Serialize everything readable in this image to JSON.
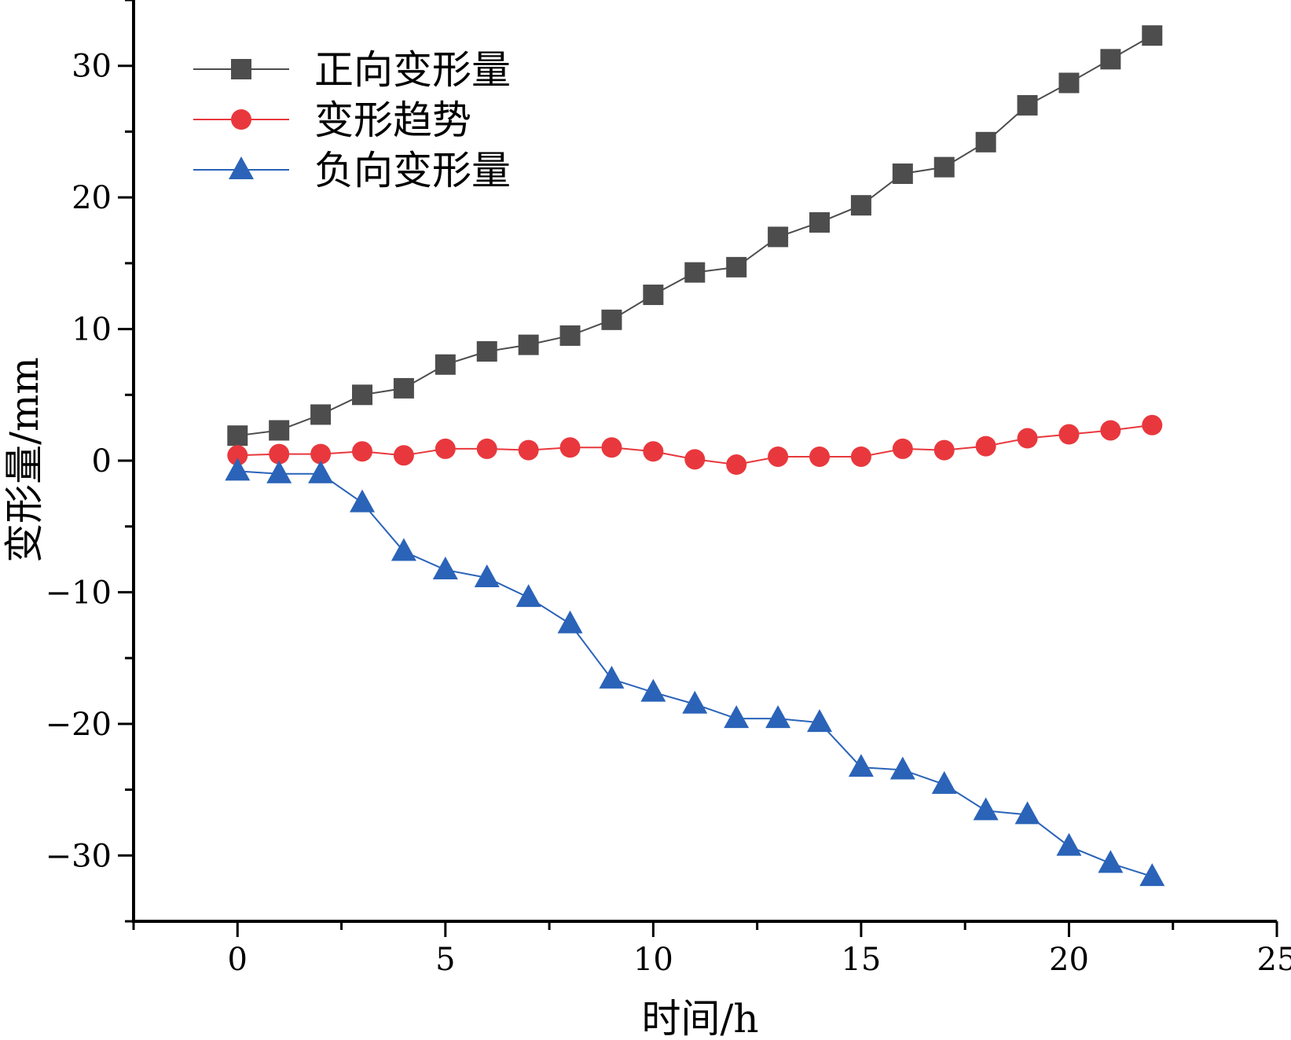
{
  "chart_data": {
    "type": "line",
    "xlabel": "时间/h",
    "ylabel": "变形量/mm",
    "xlim": [
      -2.5,
      25
    ],
    "ylim": [
      -35,
      35
    ],
    "x_ticks": [
      0,
      5,
      10,
      15,
      20,
      25
    ],
    "x_tick_labels": [
      "0",
      "5",
      "10",
      "15",
      "20",
      "25"
    ],
    "y_ticks": [
      -30,
      -20,
      -10,
      0,
      10,
      20,
      30
    ],
    "y_tick_labels": [
      "−30",
      "−20",
      "−10",
      "0",
      "10",
      "20",
      "30"
    ],
    "grid": false,
    "legend_position": "top-left",
    "x": [
      0,
      1,
      2,
      3,
      4,
      5,
      6,
      7,
      8,
      9,
      10,
      11,
      12,
      13,
      14,
      15,
      16,
      17,
      18,
      19,
      20,
      21,
      22
    ],
    "series": [
      {
        "name": "正向变形量",
        "color": "#4d4d4d",
        "marker": "square",
        "values": [
          1.9,
          2.3,
          3.5,
          5.0,
          5.5,
          7.3,
          8.3,
          8.8,
          9.5,
          10.7,
          12.6,
          14.3,
          14.7,
          17.0,
          18.1,
          19.4,
          21.8,
          22.3,
          24.2,
          27.0,
          28.7,
          30.5,
          32.3
        ]
      },
      {
        "name": "变形趋势",
        "color": "#e8383d",
        "marker": "circle",
        "values": [
          0.4,
          0.5,
          0.5,
          0.7,
          0.4,
          0.9,
          0.9,
          0.8,
          1.0,
          1.0,
          0.7,
          0.1,
          -0.3,
          0.3,
          0.3,
          0.3,
          0.9,
          0.8,
          1.1,
          1.7,
          2.0,
          2.3,
          2.7
        ]
      },
      {
        "name": "负向变形量",
        "color": "#2a63b8",
        "marker": "triangle",
        "values": [
          -0.8,
          -1.0,
          -1.0,
          -3.2,
          -6.9,
          -8.3,
          -8.9,
          -10.4,
          -12.4,
          -16.6,
          -17.6,
          -18.5,
          -19.6,
          -19.6,
          -19.9,
          -23.3,
          -23.5,
          -24.6,
          -26.6,
          -26.9,
          -29.3,
          -30.6,
          -31.6
        ]
      }
    ]
  }
}
